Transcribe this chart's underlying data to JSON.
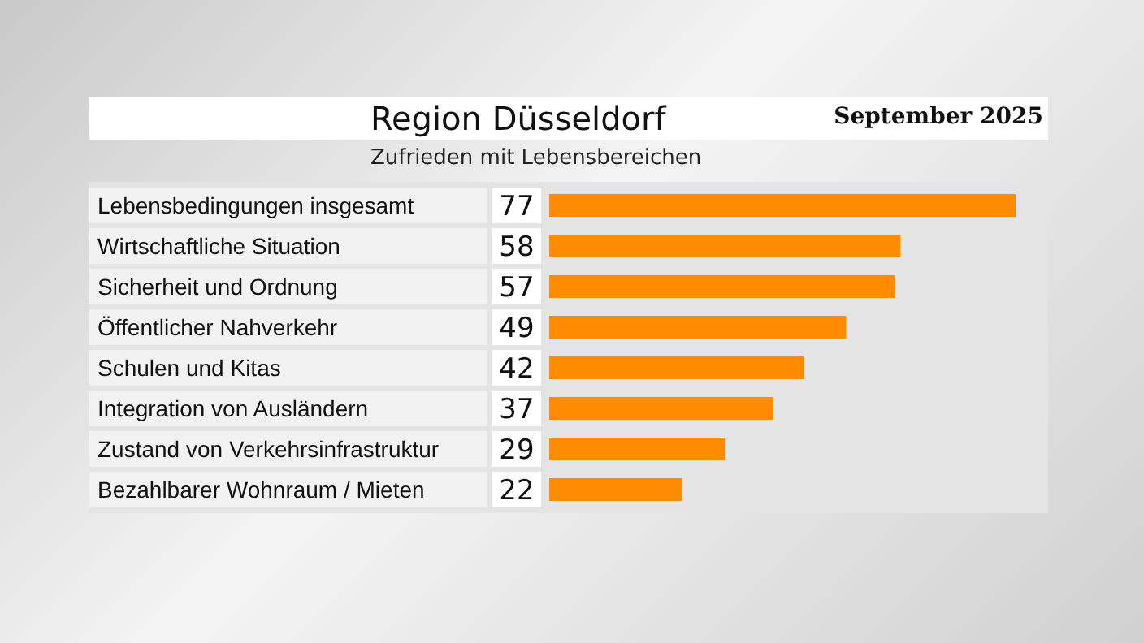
{
  "chart_data": {
    "type": "bar",
    "orientation": "horizontal",
    "title": "Region Düsseldorf",
    "subtitle": "Zufrieden mit Lebensbereichen",
    "annotations": [
      "September 2025"
    ],
    "categories": [
      "Lebensbedingungen insgesamt",
      "Wirtschaftliche Situation",
      "Sicherheit und Ordnung",
      "Öffentlicher Nahverkehr",
      "Schulen und Kitas",
      "Integration von Ausländern",
      "Zustand von Verkehrsinfrastruktur",
      "Bezahlbarer Wohnraum / Mieten"
    ],
    "values": [
      77,
      58,
      57,
      49,
      42,
      37,
      29,
      22
    ],
    "color": "#ff8c00",
    "data_labels": true
  }
}
